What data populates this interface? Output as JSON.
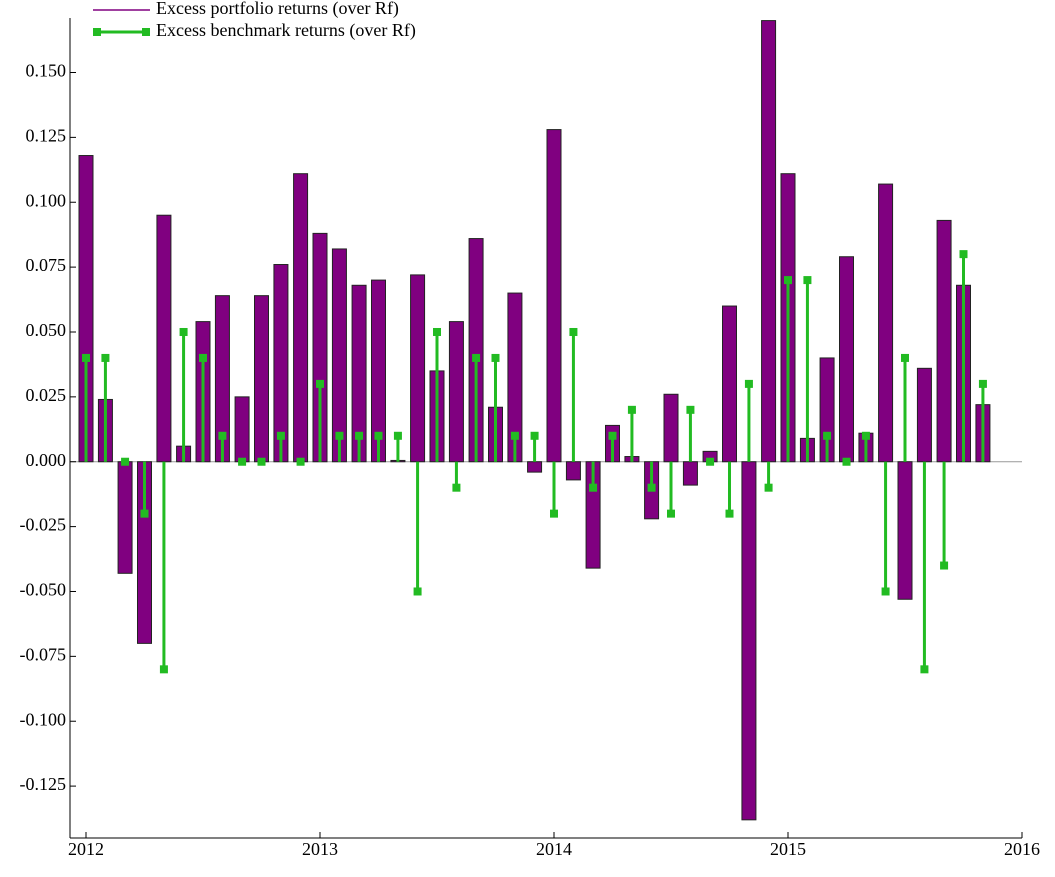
{
  "chart_data": {
    "type": "bar-stem",
    "x": [
      2012,
      2012.083,
      2012.167,
      2012.25,
      2012.333,
      2012.417,
      2012.5,
      2012.583,
      2012.667,
      2012.75,
      2012.833,
      2012.917,
      2013,
      2013.083,
      2013.167,
      2013.25,
      2013.333,
      2013.417,
      2013.5,
      2013.583,
      2013.667,
      2013.75,
      2013.833,
      2013.917,
      2014,
      2014.083,
      2014.167,
      2014.25,
      2014.333,
      2014.417,
      2014.5,
      2014.583,
      2014.667,
      2014.75,
      2014.833,
      2014.917,
      2015,
      2015.083,
      2015.167,
      2015.25,
      2015.333,
      2015.417,
      2015.5,
      2015.583,
      2015.667,
      2015.75,
      2015.833
    ],
    "series": [
      {
        "name": "Excess portfolio returns (over Rf)",
        "color": "#800080",
        "style": "bar",
        "values": [
          0.118,
          0.024,
          -0.043,
          -0.07,
          0.095,
          0.006,
          0.054,
          0.064,
          0.025,
          0.064,
          0.076,
          0.111,
          0.088,
          0.082,
          0.068,
          0.07,
          0.0005,
          0.072,
          0.035,
          0.054,
          0.086,
          0.021,
          0.065,
          -0.004,
          0.128,
          -0.007,
          -0.041,
          0.014,
          0.002,
          -0.022,
          0.026,
          -0.009,
          0.004,
          0.06,
          -0.138,
          0.17,
          0.111,
          0.009,
          0.04,
          0.079,
          0.011,
          0.107,
          -0.053,
          0.036,
          0.093,
          0.068,
          0.022
        ]
      },
      {
        "name": "Excess benchmark returns (over Rf)",
        "color": "#22bb22",
        "style": "stem",
        "values": [
          0.04,
          0.04,
          0.0,
          -0.02,
          -0.08,
          0.05,
          0.04,
          0.01,
          0.0,
          0.0,
          0.01,
          0.0,
          0.03,
          0.01,
          0.01,
          0.01,
          0.01,
          -0.05,
          0.05,
          -0.01,
          0.04,
          0.04,
          0.01,
          0.01,
          -0.02,
          0.05,
          -0.01,
          0.01,
          0.02,
          -0.01,
          -0.02,
          0.02,
          0.0,
          -0.02,
          0.03,
          -0.01,
          0.07,
          0.07,
          0.01,
          0.0,
          0.01,
          -0.05,
          0.04,
          -0.08,
          -0.04,
          0.08,
          0.03
        ]
      }
    ],
    "xlim": [
      2012,
      2016
    ],
    "xticks": [
      2012,
      2013,
      2014,
      2015,
      2016
    ],
    "ylim": [
      -0.145,
      0.171
    ],
    "yticks": [
      {
        "value": -0.125,
        "label": "-0.125"
      },
      {
        "value": -0.1,
        "label": "-0.100"
      },
      {
        "value": -0.075,
        "label": "-0.075"
      },
      {
        "value": -0.05,
        "label": "-0.050"
      },
      {
        "value": -0.025,
        "label": "-0.025"
      },
      {
        "value": 0,
        "label": "0.000"
      },
      {
        "value": 0.025,
        "label": "0.025"
      },
      {
        "value": 0.05,
        "label": "0.050"
      },
      {
        "value": 0.075,
        "label": "0.075"
      },
      {
        "value": 0.1,
        "label": "0.100"
      },
      {
        "value": 0.125,
        "label": "0.125"
      },
      {
        "value": 0.15,
        "label": "0.150"
      }
    ],
    "legend": "top-left"
  }
}
